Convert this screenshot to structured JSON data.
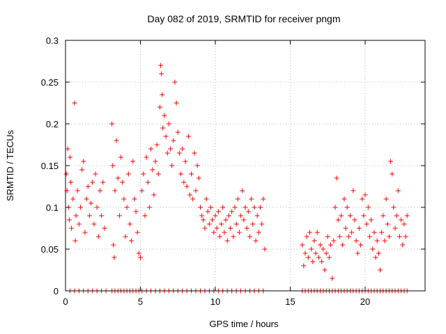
{
  "chart_data": {
    "type": "scatter",
    "title": "Day 082 of 2019, SRMTID for receiver pngm",
    "xlabel": "GPS time / hours",
    "ylabel": "SRMTID / TECUs",
    "xlim": [
      0,
      24
    ],
    "ylim": [
      0,
      0.3
    ],
    "xticks": [
      0,
      5,
      10,
      15,
      20
    ],
    "yticks": [
      0,
      0.05,
      0.1,
      0.15,
      0.2,
      0.25,
      0.3
    ],
    "xtick_labels": [
      "0",
      "5",
      "10",
      "15",
      "20"
    ],
    "ytick_labels": [
      "0",
      "0.05",
      "0.1",
      "0.15",
      "0.2",
      "0.25",
      "0.3"
    ],
    "grid": true,
    "marker": "+",
    "color": "#ff0000",
    "series": [
      {
        "name": "SRMTID",
        "points": [
          [
            0.05,
            0.14
          ],
          [
            0.1,
            0.12
          ],
          [
            0.15,
            0.17
          ],
          [
            0.2,
            0.1
          ],
          [
            0.25,
            0.085
          ],
          [
            0.3,
            0.16
          ],
          [
            0.35,
            0.13
          ],
          [
            0.4,
            0.075
          ],
          [
            0.5,
            0.11
          ],
          [
            0.6,
            0.225
          ],
          [
            0.65,
            0.06
          ],
          [
            0.7,
            0.09
          ],
          [
            0.8,
            0.12
          ],
          [
            0.9,
            0.08
          ],
          [
            1.0,
            0.1
          ],
          [
            1.1,
            0.145
          ],
          [
            1.2,
            0.155
          ],
          [
            1.3,
            0.07
          ],
          [
            1.4,
            0.11
          ],
          [
            1.5,
            0.125
          ],
          [
            1.6,
            0.09
          ],
          [
            1.7,
            0.105
          ],
          [
            1.8,
            0.13
          ],
          [
            1.9,
            0.08
          ],
          [
            2.0,
            0.14
          ],
          [
            2.1,
            0.1
          ],
          [
            2.2,
            0.065
          ],
          [
            2.3,
            0.12
          ],
          [
            2.4,
            0.09
          ],
          [
            2.5,
            0.13
          ],
          [
            2.6,
            0.075
          ],
          [
            3.1,
            0.2
          ],
          [
            3.15,
            0.15
          ],
          [
            3.2,
            0.055
          ],
          [
            3.25,
            0.04
          ],
          [
            3.3,
            0.12
          ],
          [
            3.4,
            0.18
          ],
          [
            3.5,
            0.135
          ],
          [
            3.6,
            0.09
          ],
          [
            3.7,
            0.16
          ],
          [
            3.8,
            0.13
          ],
          [
            3.9,
            0.11
          ],
          [
            4.0,
            0.065
          ],
          [
            4.1,
            0.1
          ],
          [
            4.2,
            0.14
          ],
          [
            4.3,
            0.08
          ],
          [
            4.4,
            0.06
          ],
          [
            4.5,
            0.155
          ],
          [
            4.6,
            0.11
          ],
          [
            4.7,
            0.095
          ],
          [
            4.8,
            0.07
          ],
          [
            4.9,
            0.045
          ],
          [
            5.0,
            0.04
          ],
          [
            5.1,
            0.12
          ],
          [
            5.2,
            0.14
          ],
          [
            5.3,
            0.09
          ],
          [
            5.4,
            0.16
          ],
          [
            5.5,
            0.13
          ],
          [
            5.6,
            0.1
          ],
          [
            5.7,
            0.17
          ],
          [
            5.8,
            0.145
          ],
          [
            5.9,
            0.115
          ],
          [
            6.0,
            0.155
          ],
          [
            6.1,
            0.175
          ],
          [
            6.2,
            0.14
          ],
          [
            6.3,
            0.22
          ],
          [
            6.35,
            0.27
          ],
          [
            6.4,
            0.26
          ],
          [
            6.45,
            0.235
          ],
          [
            6.5,
            0.195
          ],
          [
            6.6,
            0.21
          ],
          [
            6.7,
            0.185
          ],
          [
            6.8,
            0.165
          ],
          [
            6.9,
            0.2
          ],
          [
            7.0,
            0.17
          ],
          [
            7.1,
            0.15
          ],
          [
            7.2,
            0.18
          ],
          [
            7.3,
            0.25
          ],
          [
            7.4,
            0.225
          ],
          [
            7.5,
            0.19
          ],
          [
            7.6,
            0.165
          ],
          [
            7.7,
            0.14
          ],
          [
            7.8,
            0.17
          ],
          [
            7.9,
            0.13
          ],
          [
            8.0,
            0.155
          ],
          [
            8.1,
            0.125
          ],
          [
            8.2,
            0.185
          ],
          [
            8.3,
            0.115
          ],
          [
            8.4,
            0.14
          ],
          [
            8.5,
            0.11
          ],
          [
            8.6,
            0.165
          ],
          [
            8.7,
            0.12
          ],
          [
            8.8,
            0.15
          ],
          [
            8.9,
            0.135
          ],
          [
            9.0,
            0.1
          ],
          [
            9.1,
            0.09
          ],
          [
            9.2,
            0.085
          ],
          [
            9.3,
            0.075
          ],
          [
            9.4,
            0.11
          ],
          [
            9.5,
            0.095
          ],
          [
            9.6,
            0.08
          ],
          [
            9.7,
            0.1
          ],
          [
            9.8,
            0.085
          ],
          [
            9.9,
            0.07
          ],
          [
            10.0,
            0.09
          ],
          [
            10.1,
            0.075
          ],
          [
            10.2,
            0.095
          ],
          [
            10.3,
            0.065
          ],
          [
            10.4,
            0.08
          ],
          [
            10.5,
            0.1
          ],
          [
            10.6,
            0.07
          ],
          [
            10.7,
            0.085
          ],
          [
            10.8,
            0.06
          ],
          [
            10.9,
            0.09
          ],
          [
            11.0,
            0.075
          ],
          [
            11.1,
            0.095
          ],
          [
            11.2,
            0.065
          ],
          [
            11.3,
            0.1
          ],
          [
            11.4,
            0.08
          ],
          [
            11.5,
            0.11
          ],
          [
            11.6,
            0.07
          ],
          [
            11.7,
            0.09
          ],
          [
            11.8,
            0.12
          ],
          [
            11.9,
            0.085
          ],
          [
            12.0,
            0.1
          ],
          [
            12.1,
            0.075
          ],
          [
            12.2,
            0.095
          ],
          [
            12.3,
            0.065
          ],
          [
            12.4,
            0.11
          ],
          [
            12.5,
            0.08
          ],
          [
            12.6,
            0.1
          ],
          [
            12.7,
            0.06
          ],
          [
            12.8,
            0.09
          ],
          [
            12.9,
            0.07
          ],
          [
            13.0,
            0.1
          ],
          [
            13.1,
            0.08
          ],
          [
            13.2,
            0.11
          ],
          [
            13.3,
            0.05
          ],
          [
            15.8,
            0.055
          ],
          [
            15.9,
            0.03
          ],
          [
            16.0,
            0.045
          ],
          [
            16.1,
            0.065
          ],
          [
            16.2,
            0.04
          ],
          [
            16.3,
            0.07
          ],
          [
            16.4,
            0.05
          ],
          [
            16.5,
            0.035
          ],
          [
            16.6,
            0.06
          ],
          [
            16.7,
            0.045
          ],
          [
            16.8,
            0.07
          ],
          [
            16.9,
            0.04
          ],
          [
            17.0,
            0.055
          ],
          [
            17.1,
            0.035
          ],
          [
            17.2,
            0.05
          ],
          [
            17.3,
            0.025
          ],
          [
            17.4,
            0.045
          ],
          [
            17.5,
            0.065
          ],
          [
            17.6,
            0.04
          ],
          [
            17.7,
            0.055
          ],
          [
            17.8,
            0.015
          ],
          [
            17.9,
            0.06
          ],
          [
            18.0,
            0.1
          ],
          [
            18.1,
            0.135
          ],
          [
            18.2,
            0.085
          ],
          [
            18.3,
            0.065
          ],
          [
            18.4,
            0.09
          ],
          [
            18.5,
            0.055
          ],
          [
            18.6,
            0.11
          ],
          [
            18.7,
            0.075
          ],
          [
            18.8,
            0.1
          ],
          [
            18.9,
            0.065
          ],
          [
            19.0,
            0.09
          ],
          [
            19.1,
            0.07
          ],
          [
            19.2,
            0.12
          ],
          [
            19.3,
            0.085
          ],
          [
            19.4,
            0.06
          ],
          [
            19.5,
            0.045
          ],
          [
            19.6,
            0.075
          ],
          [
            19.7,
            0.055
          ],
          [
            19.8,
            0.11
          ],
          [
            19.9,
            0.09
          ],
          [
            20.0,
            0.115
          ],
          [
            20.1,
            0.08
          ],
          [
            20.2,
            0.1
          ],
          [
            20.3,
            0.065
          ],
          [
            20.4,
            0.085
          ],
          [
            20.5,
            0.05
          ],
          [
            20.6,
            0.07
          ],
          [
            20.7,
            0.04
          ],
          [
            20.8,
            0.06
          ],
          [
            20.9,
            0.045
          ],
          [
            21.0,
            0.025
          ],
          [
            21.1,
            0.07
          ],
          [
            21.2,
            0.09
          ],
          [
            21.3,
            0.06
          ],
          [
            21.4,
            0.11
          ],
          [
            21.5,
            0.08
          ],
          [
            21.6,
            0.065
          ],
          [
            21.7,
            0.155
          ],
          [
            21.8,
            0.14
          ],
          [
            21.9,
            0.1
          ],
          [
            22.0,
            0.075
          ],
          [
            22.1,
            0.09
          ],
          [
            22.2,
            0.12
          ],
          [
            22.3,
            0.065
          ],
          [
            22.4,
            0.085
          ],
          [
            22.5,
            0.055
          ],
          [
            22.6,
            0.08
          ],
          [
            22.7,
            0.065
          ],
          [
            22.8,
            0.09
          ]
        ]
      }
    ],
    "zero_value_times": [
      0.3,
      0.6,
      0.9,
      1.2,
      1.5,
      1.8,
      2.1,
      2.4,
      2.7,
      3.1,
      3.3,
      3.5,
      3.7,
      3.9,
      4.1,
      4.3,
      4.5,
      4.7,
      4.9,
      5.1,
      5.4,
      5.7,
      6.0,
      6.3,
      6.6,
      6.9,
      7.2,
      7.5,
      7.8,
      8.1,
      8.4,
      8.7,
      9.0,
      9.3,
      9.6,
      9.9,
      10.2,
      10.5,
      10.8,
      11.1,
      11.4,
      11.7,
      12.0,
      12.3,
      12.6,
      12.9,
      13.2,
      15.8,
      16.0,
      16.2,
      16.4,
      16.6,
      16.8,
      17.0,
      17.2,
      17.4,
      17.6,
      17.8,
      18.0,
      18.2,
      18.4,
      18.6,
      18.8,
      19.0,
      19.2,
      19.4,
      19.6,
      19.8,
      20.0,
      20.2,
      20.4,
      20.6,
      20.8,
      21.0,
      21.2,
      21.4,
      21.6,
      21.8,
      22.0,
      22.2,
      22.4,
      22.6,
      22.8
    ]
  }
}
